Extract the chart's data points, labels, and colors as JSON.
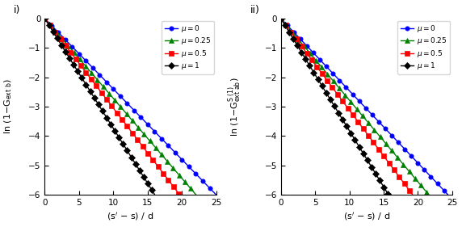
{
  "title_i": "i)",
  "title_ii": "ii)",
  "xlabel": "(s$^\\prime$ $-$ s) / d",
  "ylabel_i": "ln (1$-$G$_{\\mathrm{ext\\ b}}$)",
  "ylabel_ii": "ln (1$-$G$_{\\mathrm{ext\\ ab}}^{\\mathrm{S\\ (1)}}$)",
  "xlim": [
    0,
    25
  ],
  "ylim": [
    -6,
    0
  ],
  "yticks": [
    0,
    -1,
    -2,
    -3,
    -4,
    -5,
    -6
  ],
  "xticks": [
    0,
    5,
    10,
    15,
    20,
    25
  ],
  "mu_values": [
    0,
    0.25,
    0.5,
    1
  ],
  "colors": [
    "blue",
    "green",
    "red",
    "black"
  ],
  "markers": [
    "o",
    "^",
    "s",
    "D"
  ],
  "labels": [
    "$\\mu = 0$",
    "$\\mu = 0.25$",
    "$\\mu = 0.5$",
    "$\\mu = 1$"
  ],
  "slopes_i": [
    -0.24,
    -0.272,
    -0.305,
    -0.374
  ],
  "slopes_ii": [
    -0.246,
    -0.278,
    -0.312,
    -0.382
  ],
  "n_markers": 25,
  "linewidth": 1.0,
  "markersize": 3.8,
  "background": "white"
}
